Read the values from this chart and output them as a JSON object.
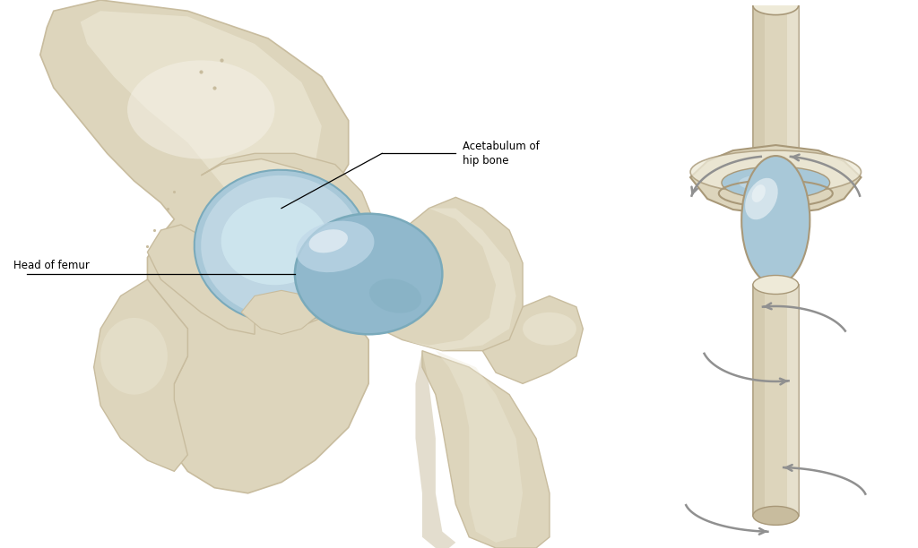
{
  "background_color": "#ffffff",
  "bone_color": "#ddd5bc",
  "bone_mid": "#c8bc9e",
  "bone_dark": "#a89878",
  "bone_light": "#eeead8",
  "bone_highlight": "#f5f2e8",
  "socket_blue": "#a8c8d8",
  "socket_light": "#c8dde8",
  "socket_dark": "#7aaabb",
  "head_blue": "#90b8cc",
  "head_light": "#c0d8e8",
  "arrow_color": "#909090",
  "arrow_dark": "#707070",
  "text_color": "#000000",
  "label_acetabulum": "Acetabulum of\nhip bone",
  "label_femur": "Head of femur",
  "figsize": [
    10.24,
    6.12
  ],
  "dpi": 100
}
